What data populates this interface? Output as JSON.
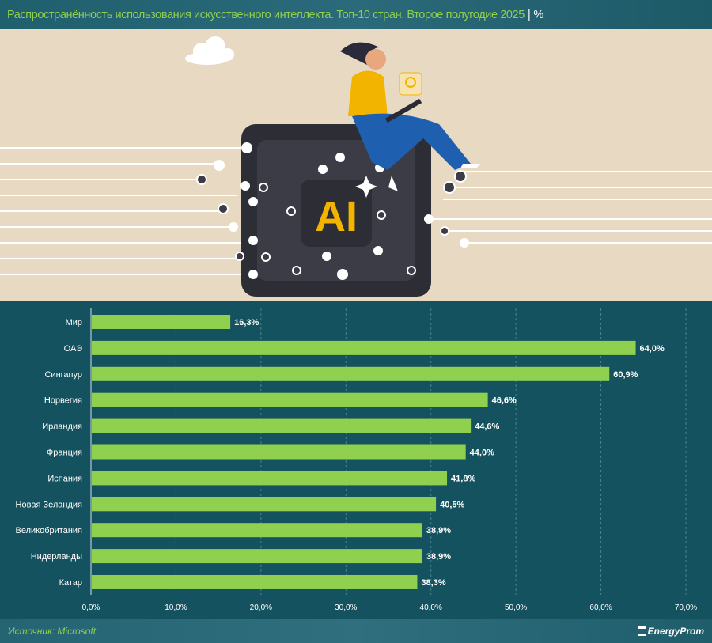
{
  "header": {
    "title": "Распространённость использования искусственного интеллекта. Топ-10 стран. Второе полугодие 2025",
    "separator": "|",
    "unit": "%"
  },
  "illustration": {
    "chip_label": "AI"
  },
  "chart_data": {
    "type": "bar",
    "orientation": "horizontal",
    "title": "Распространённость использования искусственного интеллекта. Топ-10 стран. Второе полугодие 2025",
    "categories": [
      "Мир",
      "ОАЭ",
      "Сингапур",
      "Норвегия",
      "Ирландия",
      "Франция",
      "Испания",
      "Новая Зеландия",
      "Великобритания",
      "Нидерланды",
      "Катар"
    ],
    "values": [
      16.3,
      64.0,
      60.9,
      46.6,
      44.6,
      44.0,
      41.8,
      40.5,
      38.9,
      38.9,
      38.3
    ],
    "value_labels": [
      "16,3%",
      "64,0%",
      "60,9%",
      "46,6%",
      "44,6%",
      "44,0%",
      "41,8%",
      "40,5%",
      "38,9%",
      "38,9%",
      "38,3%"
    ],
    "xlim": [
      0,
      70
    ],
    "x_ticks": [
      "0,0%",
      "10,0%",
      "20,0%",
      "30,0%",
      "40,0%",
      "50,0%",
      "60,0%",
      "70,0%"
    ],
    "grid": "vertical dashed",
    "bar_color": "#8fd14f"
  },
  "footer": {
    "source": "Источник: Microsoft",
    "logo": "EnergyProm"
  }
}
